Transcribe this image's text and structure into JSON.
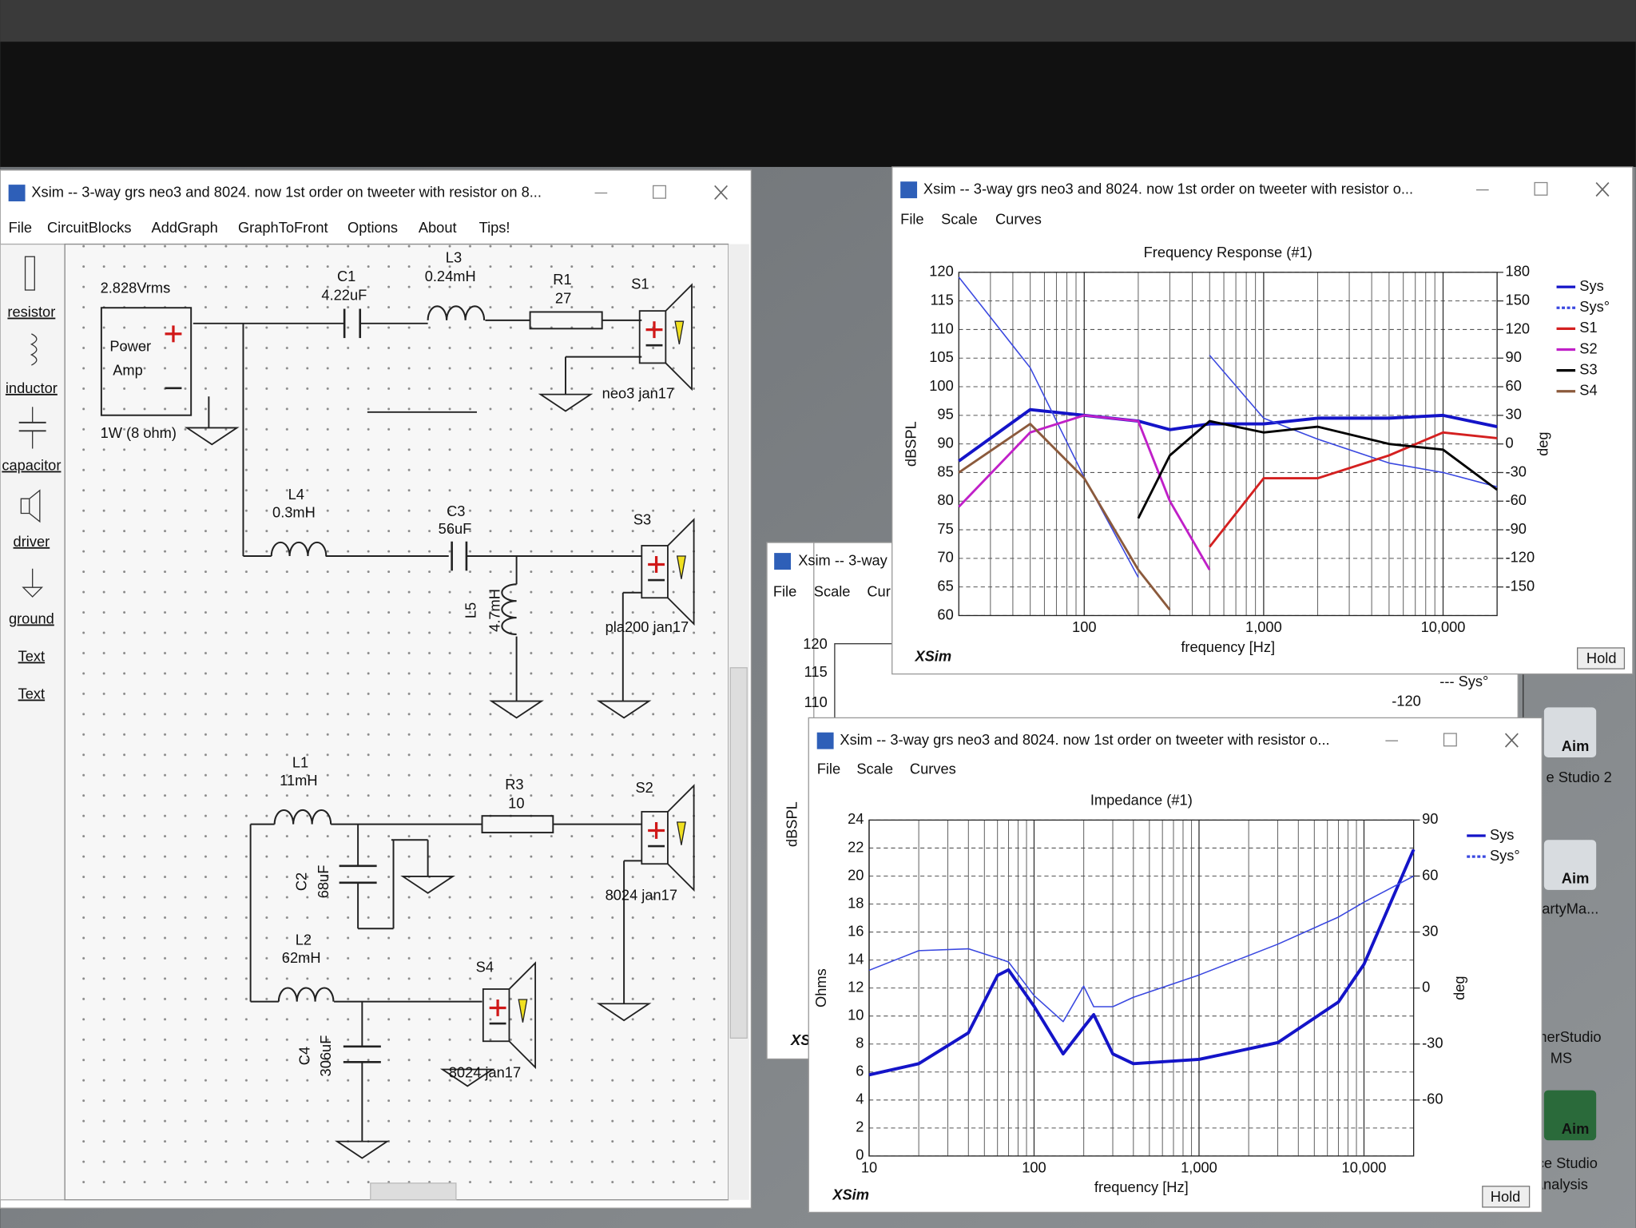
{
  "schematic_window": {
    "title": "Xsim -- 3-way grs neo3 and 8024. now 1st order on tweeter with resistor on 8...",
    "menu": [
      "File",
      "CircuitBlocks",
      "AddGraph",
      "GraphToFront",
      "Options",
      "About",
      "Tips!"
    ],
    "toolbox": [
      "resistor",
      "inductor",
      "capacitor",
      "driver",
      "ground",
      "Text",
      "Text"
    ],
    "labels": [
      "2.828Vrms",
      "Power",
      "Amp",
      "1W (8 ohm)",
      "C1",
      "4.22uF",
      "L3",
      "0.24mH",
      "R1",
      "27",
      "S1",
      "neo3 jan17",
      "L4",
      "0.3mH",
      "C3",
      "56uF",
      "S3",
      "L5",
      "4.7mH",
      "pla200 jan17",
      "L1",
      "11mH",
      "R3",
      "10",
      "S2",
      "C2",
      "68uF",
      "8024 jan17",
      "L2",
      "62mH",
      "S4",
      "C4",
      "306uF",
      "8024 jan17"
    ]
  },
  "freq_window": {
    "title": "Xsim -- 3-way grs neo3 and 8024. now 1st order on tweeter with resistor o...",
    "menu": [
      "File",
      "Scale",
      "Curves"
    ],
    "brand": "XSim",
    "button": "Hold"
  },
  "back_window": {
    "title": "Xsim -- 3-way",
    "menu": [
      "File",
      "Scale",
      "Cur"
    ],
    "ticks": [
      120,
      115,
      110
    ],
    "ylabel": "dBSPL",
    "brand": "XS",
    "tick_right": -120,
    "legend": "--- Sys°"
  },
  "imp_window": {
    "title": "Xsim -- 3-way grs neo3 and 8024. now 1st order on tweeter with resistor o...",
    "menu": [
      "File",
      "Scale",
      "Curves"
    ],
    "brand": "XSim",
    "button": "Hold"
  },
  "desktop_icons": {
    "logos": [
      "Aim",
      "Aim",
      "Aim"
    ],
    "labels": [
      "e Studio 2",
      "artyMa...",
      "nerStudio",
      "MS",
      "ce Studio",
      "Analysis"
    ]
  },
  "chart_data": [
    {
      "type": "line",
      "title": "Frequency Response (#1)",
      "xlabel": "frequency [Hz]",
      "ylabel": "dBSPL",
      "y2label": "deg",
      "log_x": true,
      "grid": true,
      "legend": "right",
      "x": [
        20,
        50,
        100,
        200,
        300,
        500,
        1000,
        2000,
        5000,
        10000,
        20000
      ],
      "xlim": [
        20,
        20000
      ],
      "xticks": [
        100,
        {
          "value": 1000,
          "label": "1,000"
        },
        {
          "value": 10000,
          "label": "10,000"
        }
      ],
      "ylim": [
        60,
        120
      ],
      "yticks": [
        60,
        65,
        70,
        75,
        80,
        85,
        90,
        95,
        100,
        105,
        110,
        115,
        120
      ],
      "y2lim": [
        -180,
        180
      ],
      "y2ticks": [
        180,
        150,
        120,
        90,
        60,
        30,
        0,
        -30,
        -60,
        -90,
        -120,
        -150
      ],
      "series": [
        {
          "name": "Sys",
          "color": "#1414c8",
          "width": 3,
          "values": [
            87,
            96,
            95,
            94,
            92.5,
            93.5,
            93.5,
            94.5,
            94.5,
            95,
            93
          ]
        },
        {
          "name": "Sys°",
          "color": "#3a48e0",
          "width": 1.2,
          "dashed": true,
          "axis": "y2",
          "values": [
            175,
            80,
            -35,
            -140,
            null,
            93,
            27,
            5,
            -20,
            -30,
            -45
          ]
        },
        {
          "name": "S1",
          "color": "#d42020",
          "width": 2.2,
          "values": [
            null,
            null,
            null,
            null,
            null,
            72,
            84,
            84,
            88,
            92,
            91
          ]
        },
        {
          "name": "S2",
          "color": "#c020c8",
          "width": 2.2,
          "values": [
            79,
            92,
            95,
            94,
            80,
            68,
            null,
            null,
            null,
            null,
            null
          ]
        },
        {
          "name": "S3",
          "color": "#000000",
          "width": 2.2,
          "values": [
            null,
            null,
            null,
            77,
            88,
            94,
            92,
            93,
            90,
            89,
            82
          ]
        },
        {
          "name": "S4",
          "color": "#8b5a3c",
          "width": 2.2,
          "values": [
            85,
            93.5,
            84,
            68,
            61,
            null,
            null,
            null,
            null,
            null,
            null
          ]
        }
      ]
    },
    {
      "type": "line",
      "title": "Impedance (#1)",
      "xlabel": "frequency [Hz]",
      "ylabel": "Ohms",
      "y2label": "deg",
      "log_x": true,
      "grid": true,
      "legend": "right",
      "x": [
        10,
        20,
        40,
        60,
        70,
        100,
        150,
        200,
        230,
        300,
        400,
        1000,
        3000,
        7000,
        10000,
        20000
      ],
      "xlim": [
        10,
        20000
      ],
      "xticks": [
        10,
        100,
        {
          "value": 1000,
          "label": "1,000"
        },
        {
          "value": 10000,
          "label": "10,000"
        }
      ],
      "ylim": [
        0,
        24
      ],
      "yticks": [
        0,
        2,
        4,
        6,
        8,
        10,
        12,
        14,
        16,
        18,
        20,
        22,
        24
      ],
      "y2lim": [
        -90,
        90
      ],
      "y2ticks": [
        90,
        60,
        30,
        0,
        -30,
        -60
      ],
      "series": [
        {
          "name": "Sys",
          "color": "#1414c8",
          "width": 3,
          "values": [
            5.8,
            6.6,
            8.8,
            12.9,
            13.3,
            10.7,
            7.3,
            9.2,
            10.1,
            7.3,
            6.6,
            6.9,
            8.1,
            11,
            13.7,
            21.9
          ]
        },
        {
          "name": "Sys°",
          "color": "#3a48e0",
          "width": 1.2,
          "dashed": true,
          "axis": "y2",
          "values": [
            9.5,
            20,
            21,
            16,
            14,
            -4,
            -18,
            1,
            -10,
            -10,
            -5,
            7,
            23.5,
            38,
            46,
            60
          ]
        }
      ]
    }
  ]
}
